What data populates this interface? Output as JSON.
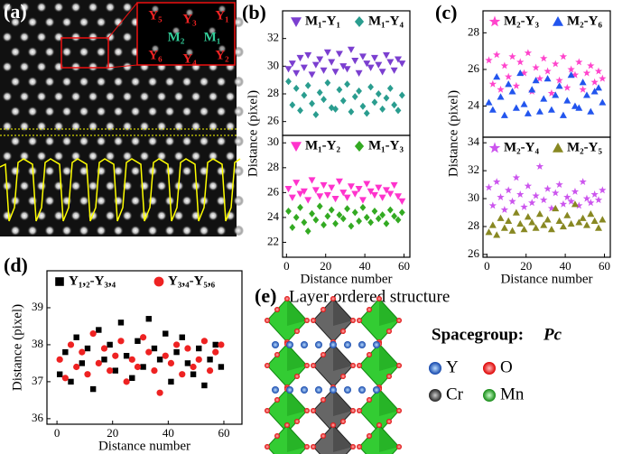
{
  "figure": {
    "a": {
      "label": "(a)",
      "inset_labels": [
        "Y₅",
        "Y₃",
        "Y₁",
        "M₂",
        "M₁",
        "Y₆",
        "Y₄",
        "Y₂"
      ]
    },
    "e": {
      "label": "(e)",
      "title": "Layer ordered structure",
      "spacegroup_label": "Spacegroup:",
      "spacegroup": "Pc",
      "legend": [
        "Y",
        "O",
        "Cr",
        "Mn"
      ]
    }
  },
  "chart_data": [
    {
      "type": "scatter",
      "panel": "(b)",
      "ylabel": "Distance (pixel)",
      "xlim": [
        -2,
        63
      ],
      "ylim": [
        25,
        34
      ],
      "yticks": [
        26,
        28,
        30,
        32
      ],
      "x": [
        1,
        3,
        5,
        7,
        9,
        11,
        13,
        15,
        17,
        19,
        21,
        23,
        25,
        27,
        29,
        31,
        33,
        35,
        37,
        39,
        41,
        43,
        45,
        47,
        49,
        51,
        53,
        55,
        57,
        59
      ],
      "series": [
        {
          "name": "M₁-Y₁",
          "color": "#7b3fd0",
          "marker": "triangle-down",
          "values": [
            29.8,
            30.2,
            29.5,
            30.6,
            29.9,
            30.8,
            29.4,
            30.1,
            30.5,
            29.7,
            31.0,
            30.3,
            29.6,
            30.9,
            30.0,
            29.8,
            31.2,
            30.4,
            29.5,
            30.7,
            30.2,
            29.9,
            30.6,
            30.1,
            29.6,
            30.8,
            30.3,
            29.7,
            30.5,
            30.2
          ]
        },
        {
          "name": "M₁-Y₄",
          "color": "#2a9d8f",
          "marker": "diamond",
          "values": [
            28.9,
            27.2,
            28.4,
            26.8,
            27.9,
            28.6,
            27.3,
            26.5,
            28.1,
            27.6,
            28.8,
            27.0,
            26.9,
            28.3,
            27.5,
            28.7,
            26.7,
            27.8,
            28.2,
            27.1,
            26.6,
            28.5,
            27.4,
            28.0,
            26.9,
            27.7,
            28.4,
            27.2,
            26.8,
            27.9
          ]
        }
      ]
    },
    {
      "type": "scatter",
      "xlabel": "Distance number",
      "xlim": [
        -2,
        63
      ],
      "ylim": [
        20.8,
        30.6
      ],
      "xticks": [
        0,
        20,
        40,
        60
      ],
      "yticks": [
        22,
        24,
        26,
        28,
        30
      ],
      "x": [
        1,
        3,
        5,
        7,
        9,
        11,
        13,
        15,
        17,
        19,
        21,
        23,
        25,
        27,
        29,
        31,
        33,
        35,
        37,
        39,
        41,
        43,
        45,
        47,
        49,
        51,
        53,
        55,
        57,
        59
      ],
      "series": [
        {
          "name": "M₁-Y₂",
          "color": "#ff33cc",
          "marker": "triangle-down",
          "values": [
            26.3,
            25.6,
            26.8,
            25.9,
            26.1,
            25.4,
            27.0,
            26.2,
            25.7,
            26.6,
            25.8,
            26.4,
            25.5,
            26.9,
            26.0,
            25.6,
            26.5,
            25.9,
            26.3,
            25.4,
            26.7,
            26.1,
            25.8,
            26.4,
            25.6,
            26.2,
            25.9,
            26.6,
            25.7,
            25.3
          ]
        },
        {
          "name": "M₁-Y₃",
          "color": "#33aa22",
          "marker": "diamond",
          "values": [
            24.5,
            23.2,
            24.0,
            24.8,
            23.6,
            22.9,
            24.3,
            23.8,
            24.9,
            23.4,
            24.1,
            24.6,
            23.5,
            24.2,
            23.9,
            24.7,
            23.3,
            24.4,
            23.7,
            24.8,
            24.0,
            23.6,
            24.5,
            23.9,
            24.2,
            23.5,
            24.6,
            24.1,
            23.8,
            24.4
          ]
        }
      ]
    },
    {
      "type": "scatter",
      "panel": "(c)",
      "ylabel": "Distance (pixel)",
      "xlim": [
        -2,
        63
      ],
      "ylim": [
        22.3,
        29.2
      ],
      "yticks": [
        24,
        26,
        28
      ],
      "x": [
        1,
        3,
        5,
        7,
        9,
        11,
        13,
        15,
        17,
        19,
        21,
        23,
        25,
        27,
        29,
        31,
        33,
        35,
        37,
        39,
        41,
        43,
        45,
        47,
        49,
        51,
        53,
        55,
        57,
        59
      ],
      "series": [
        {
          "name": "M₂-Y₃",
          "color": "#ff44cc",
          "marker": "star",
          "values": [
            26.5,
            25.2,
            26.8,
            24.9,
            26.2,
            25.6,
            26.7,
            25.1,
            26.4,
            25.8,
            26.9,
            24.8,
            26.1,
            25.5,
            26.6,
            25.9,
            24.7,
            26.3,
            25.4,
            26.7,
            25.0,
            26.0,
            25.7,
            26.4,
            24.9,
            25.8,
            26.2,
            25.3,
            25.9,
            25.5
          ]
        },
        {
          "name": "M₂-Y₆",
          "color": "#2255ee",
          "marker": "triangle",
          "values": [
            24.2,
            23.8,
            25.6,
            24.5,
            23.5,
            25.2,
            24.8,
            23.9,
            25.8,
            24.1,
            23.6,
            24.9,
            25.4,
            23.7,
            24.4,
            25.5,
            23.8,
            24.6,
            25.1,
            23.5,
            24.3,
            25.7,
            24.0,
            23.9,
            25.3,
            24.6,
            23.7,
            24.8,
            25.0,
            24.2
          ]
        }
      ]
    },
    {
      "type": "scatter",
      "xlabel": "Distance number",
      "xlim": [
        -2,
        63
      ],
      "ylim": [
        25.8,
        34.4
      ],
      "xticks": [
        0,
        20,
        40,
        60
      ],
      "yticks": [
        26,
        28,
        30,
        32,
        34
      ],
      "x": [
        1,
        3,
        5,
        7,
        9,
        11,
        13,
        15,
        17,
        19,
        21,
        23,
        25,
        27,
        29,
        31,
        33,
        35,
        37,
        39,
        41,
        43,
        45,
        47,
        49,
        51,
        53,
        55,
        57,
        59
      ],
      "series": [
        {
          "name": "M₂-Y₄",
          "color": "#cc55ee",
          "marker": "star",
          "values": [
            30.8,
            29.5,
            31.2,
            30.1,
            29.2,
            30.6,
            29.8,
            31.5,
            30.3,
            29.4,
            30.9,
            29.7,
            30.2,
            32.3,
            29.9,
            30.7,
            29.3,
            30.4,
            31.0,
            29.6,
            30.1,
            29.8,
            30.5,
            29.5,
            31.2,
            30.0,
            29.7,
            30.3,
            29.9,
            30.6
          ]
        },
        {
          "name": "M₂-Y₅",
          "color": "#888822",
          "marker": "triangle",
          "values": [
            27.6,
            28.1,
            27.4,
            28.6,
            27.9,
            28.4,
            27.7,
            29.0,
            28.2,
            27.8,
            28.7,
            28.3,
            27.9,
            28.9,
            28.1,
            28.5,
            27.8,
            29.3,
            28.4,
            28.0,
            28.8,
            28.2,
            29.6,
            28.3,
            28.6,
            28.1,
            28.9,
            28.4,
            27.9,
            28.5
          ]
        }
      ]
    },
    {
      "type": "scatter",
      "panel": "(d)",
      "ylabel": "Distance (pixel)",
      "xlabel": "Distance number",
      "xlim": [
        -3.6,
        66.5
      ],
      "ylim": [
        35.85,
        40
      ],
      "xticks": [
        0,
        20,
        40,
        60
      ],
      "yticks": [
        36,
        37,
        38,
        39
      ],
      "x": [
        1,
        3,
        5,
        7,
        9,
        11,
        13,
        15,
        17,
        19,
        21,
        23,
        25,
        27,
        29,
        31,
        33,
        35,
        37,
        39,
        41,
        43,
        45,
        47,
        49,
        51,
        53,
        55,
        57,
        59
      ],
      "series": [
        {
          "name": "Y₁,₂-Y₃,₄",
          "color": "#000000",
          "marker": "square",
          "values": [
            37.2,
            37.8,
            37.0,
            38.2,
            37.5,
            37.9,
            36.8,
            38.4,
            37.6,
            38.0,
            37.3,
            38.6,
            37.7,
            37.1,
            38.1,
            37.4,
            38.7,
            37.9,
            37.6,
            38.3,
            37.0,
            37.8,
            38.2,
            37.5,
            37.2,
            37.9,
            36.9,
            37.6,
            38.0,
            37.4
          ]
        },
        {
          "name": "Y₃,₄-Y₅,₆",
          "color": "#ee2222",
          "marker": "circle",
          "values": [
            37.6,
            37.1,
            38.0,
            37.4,
            37.8,
            37.2,
            38.3,
            37.5,
            37.9,
            37.3,
            37.7,
            38.1,
            37.0,
            37.6,
            37.4,
            38.2,
            37.8,
            37.3,
            36.7,
            37.7,
            37.5,
            38.0,
            37.2,
            37.9,
            37.4,
            37.6,
            38.1,
            37.3,
            37.8,
            38.0
          ]
        }
      ]
    }
  ]
}
